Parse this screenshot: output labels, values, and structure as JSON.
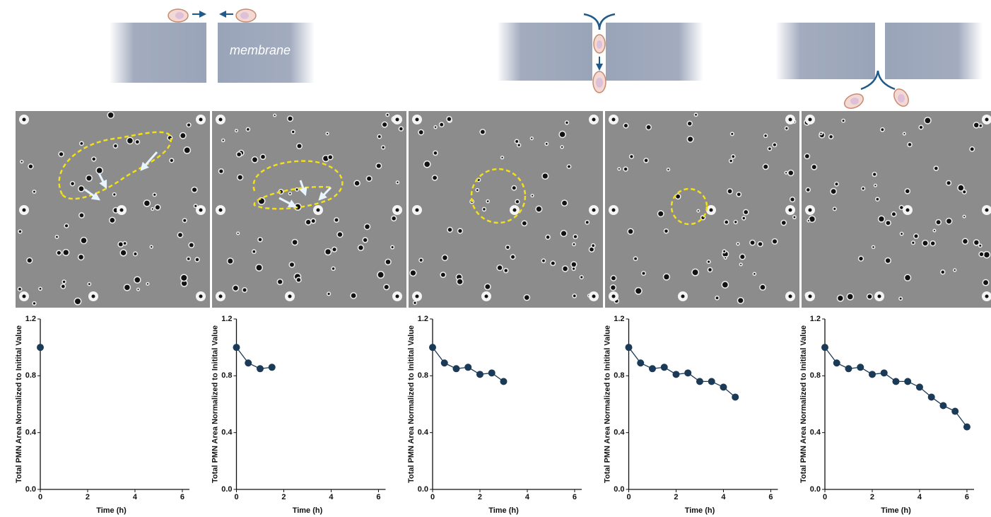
{
  "diagram": {
    "label": "membrane"
  },
  "chart_data": [
    {
      "type": "line",
      "x": [
        0
      ],
      "values": [
        1.0
      ],
      "color": "#1b3a57",
      "xlabel": "Time (h)",
      "ylabel": "Total PMN Area Normalized to Initital Value",
      "xlim": [
        0,
        6.3
      ],
      "ylim": [
        0,
        1.2
      ],
      "xticks": [
        0,
        2,
        4,
        6
      ],
      "yticks": [
        {
          "value": 0,
          "label": "0.0"
        },
        0.4,
        0.8,
        1.2
      ]
    },
    {
      "type": "line",
      "x": [
        0,
        0.5,
        1,
        1.5
      ],
      "values": [
        1.0,
        0.89,
        0.85,
        0.86
      ],
      "color": "#1b3a57",
      "xlabel": "Time (h)",
      "ylabel": "Total PMN Area Normalized to Initital Value",
      "xlim": [
        0,
        6.3
      ],
      "ylim": [
        0,
        1.2
      ],
      "xticks": [
        0,
        2,
        4,
        6
      ],
      "yticks": [
        {
          "value": 0,
          "label": "0.0"
        },
        0.4,
        0.8,
        1.2
      ]
    },
    {
      "type": "line",
      "x": [
        0,
        0.5,
        1,
        1.5,
        2,
        2.5,
        3
      ],
      "values": [
        1.0,
        0.89,
        0.85,
        0.86,
        0.81,
        0.82,
        0.76
      ],
      "color": "#1b3a57",
      "xlabel": "Time (h)",
      "ylabel": "Total PMN Area Normalized to Initital Value",
      "xlim": [
        0,
        6.3
      ],
      "ylim": [
        0,
        1.2
      ],
      "xticks": [
        0,
        2,
        4,
        6
      ],
      "yticks": [
        {
          "value": 0,
          "label": "0.0"
        },
        0.4,
        0.8,
        1.2
      ]
    },
    {
      "type": "line",
      "x": [
        0,
        0.5,
        1,
        1.5,
        2,
        2.5,
        3,
        3.5,
        4,
        4.5
      ],
      "values": [
        1.0,
        0.89,
        0.85,
        0.86,
        0.81,
        0.82,
        0.76,
        0.76,
        0.72,
        0.65
      ],
      "color": "#1b3a57",
      "xlabel": "Time (h)",
      "ylabel": "Total PMN Area Normalized to Initital Value",
      "xlim": [
        0,
        6.3
      ],
      "ylim": [
        0,
        1.2
      ],
      "xticks": [
        0,
        2,
        4,
        6
      ],
      "yticks": [
        {
          "value": 0,
          "label": "0.0"
        },
        0.4,
        0.8,
        1.2
      ]
    },
    {
      "type": "line",
      "x": [
        0,
        0.5,
        1,
        1.5,
        2,
        2.5,
        3,
        3.5,
        4,
        4.5,
        5,
        5.5,
        6
      ],
      "values": [
        1.0,
        0.89,
        0.85,
        0.86,
        0.81,
        0.82,
        0.76,
        0.76,
        0.72,
        0.65,
        0.59,
        0.55,
        0.44
      ],
      "color": "#1b3a57",
      "xlabel": "Time (h)",
      "ylabel": "Total PMN Area Normalized to Initital Value",
      "xlim": [
        0,
        6.3
      ],
      "ylim": [
        0,
        1.2
      ],
      "xticks": [
        0,
        2,
        4,
        6
      ],
      "yticks": [
        {
          "value": 0,
          "label": "0.0"
        },
        0.4,
        0.8,
        1.2
      ]
    }
  ]
}
